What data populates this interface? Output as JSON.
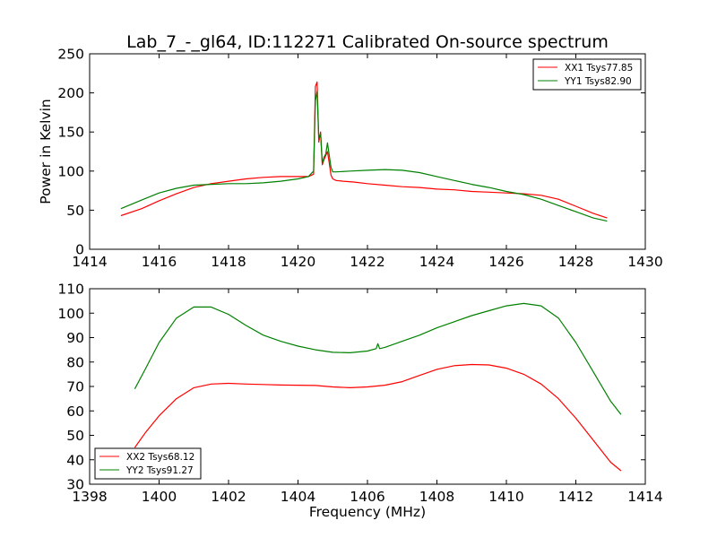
{
  "chart_data": [
    {
      "type": "line",
      "title": "Lab_7_-_gl64, ID:112271 Calibrated On-source spectrum",
      "xlabel": "",
      "ylabel": "Power in Kelvin",
      "xlim": [
        1414,
        1430
      ],
      "ylim": [
        0,
        250
      ],
      "xticks": [
        "1414",
        "1416",
        "1418",
        "1420",
        "1422",
        "1424",
        "1426",
        "1428",
        "1430"
      ],
      "yticks": [
        "0",
        "50",
        "100",
        "150",
        "200",
        "250"
      ],
      "grid": false,
      "legend_position": "top-right",
      "series": [
        {
          "name": "XX1 Tsys77.85",
          "color": "#ff0000",
          "x": [
            1414.9,
            1415.5,
            1416.0,
            1416.5,
            1417.0,
            1417.5,
            1418.0,
            1418.5,
            1419.0,
            1419.5,
            1420.0,
            1420.3,
            1420.45,
            1420.5,
            1420.55,
            1420.6,
            1420.65,
            1420.7,
            1420.75,
            1420.8,
            1420.85,
            1420.9,
            1420.95,
            1421.0,
            1421.1,
            1421.3,
            1421.6,
            1422.0,
            1422.5,
            1423.0,
            1423.5,
            1424.0,
            1424.5,
            1425.0,
            1425.5,
            1426.0,
            1426.5,
            1427.0,
            1427.5,
            1428.0,
            1428.5,
            1428.9
          ],
          "values": [
            43,
            52,
            62,
            71,
            79,
            84,
            87,
            90,
            92,
            93,
            93,
            93,
            96,
            208,
            214,
            137,
            150,
            108,
            115,
            120,
            125,
            110,
            95,
            90,
            88,
            87,
            86,
            84,
            82,
            80,
            79,
            77,
            76,
            74,
            73,
            72,
            71,
            69,
            64,
            55,
            46,
            40
          ]
        },
        {
          "name": "YY1 Tsys82.90",
          "color": "#008000",
          "x": [
            1414.9,
            1415.5,
            1416.0,
            1416.5,
            1417.0,
            1417.5,
            1418.0,
            1418.5,
            1419.0,
            1419.5,
            1420.0,
            1420.3,
            1420.45,
            1420.5,
            1420.55,
            1420.6,
            1420.65,
            1420.7,
            1420.75,
            1420.8,
            1420.85,
            1420.9,
            1420.95,
            1421.0,
            1421.1,
            1421.5,
            1422.0,
            1422.5,
            1423.0,
            1423.5,
            1424.0,
            1424.5,
            1425.0,
            1425.5,
            1426.0,
            1426.5,
            1427.0,
            1427.5,
            1428.0,
            1428.5,
            1428.9
          ],
          "values": [
            52,
            63,
            72,
            78,
            82,
            83,
            84,
            84,
            85,
            87,
            90,
            93,
            100,
            190,
            202,
            142,
            148,
            110,
            118,
            122,
            136,
            120,
            105,
            99,
            99,
            100,
            101,
            102,
            101,
            98,
            93,
            88,
            83,
            79,
            74,
            70,
            64,
            56,
            48,
            40,
            36
          ]
        }
      ]
    },
    {
      "type": "line",
      "title": "",
      "xlabel": "Frequency (MHz)",
      "ylabel": "",
      "xlim": [
        1398,
        1414
      ],
      "ylim": [
        30,
        110
      ],
      "xticks": [
        "1398",
        "1400",
        "1402",
        "1404",
        "1406",
        "1408",
        "1410",
        "1412",
        "1414"
      ],
      "yticks": [
        "30",
        "40",
        "50",
        "60",
        "70",
        "80",
        "90",
        "100",
        "110"
      ],
      "grid": false,
      "legend_position": "bottom-left",
      "series": [
        {
          "name": "XX2 Tsys68.12",
          "color": "#ff0000",
          "x": [
            1399.3,
            1399.6,
            1400.0,
            1400.5,
            1401.0,
            1401.5,
            1402.0,
            1402.5,
            1403.0,
            1403.5,
            1404.0,
            1404.5,
            1405.0,
            1405.5,
            1406.0,
            1406.5,
            1407.0,
            1407.5,
            1408.0,
            1408.5,
            1409.0,
            1409.5,
            1410.0,
            1410.5,
            1411.0,
            1411.5,
            1412.0,
            1412.5,
            1413.0,
            1413.3
          ],
          "values": [
            45,
            51,
            58,
            65,
            69.5,
            71,
            71.3,
            71,
            70.8,
            70.6,
            70.5,
            70.4,
            69.8,
            69.5,
            69.8,
            70.5,
            72,
            74.5,
            77,
            78.5,
            79,
            78.8,
            77.5,
            75,
            71,
            65,
            57,
            48,
            39,
            35.5
          ]
        },
        {
          "name": "YY2 Tsys91.27",
          "color": "#008000",
          "x": [
            1399.3,
            1399.6,
            1400.0,
            1400.5,
            1401.0,
            1401.5,
            1402.0,
            1402.5,
            1403.0,
            1403.5,
            1404.0,
            1404.5,
            1405.0,
            1405.5,
            1406.0,
            1406.25,
            1406.3,
            1406.35,
            1406.5,
            1407.0,
            1407.5,
            1408.0,
            1408.5,
            1409.0,
            1409.5,
            1410.0,
            1410.5,
            1411.0,
            1411.5,
            1412.0,
            1412.5,
            1413.0,
            1413.3
          ],
          "values": [
            69,
            77,
            88,
            98,
            102.5,
            102.5,
            99.5,
            95,
            91,
            88.5,
            86.5,
            85,
            84,
            83.8,
            84.5,
            85.5,
            87.5,
            85.5,
            86,
            88.5,
            91,
            94,
            96.5,
            99,
            101,
            103,
            104,
            103,
            98,
            88,
            76,
            64,
            58.5
          ]
        }
      ]
    }
  ]
}
